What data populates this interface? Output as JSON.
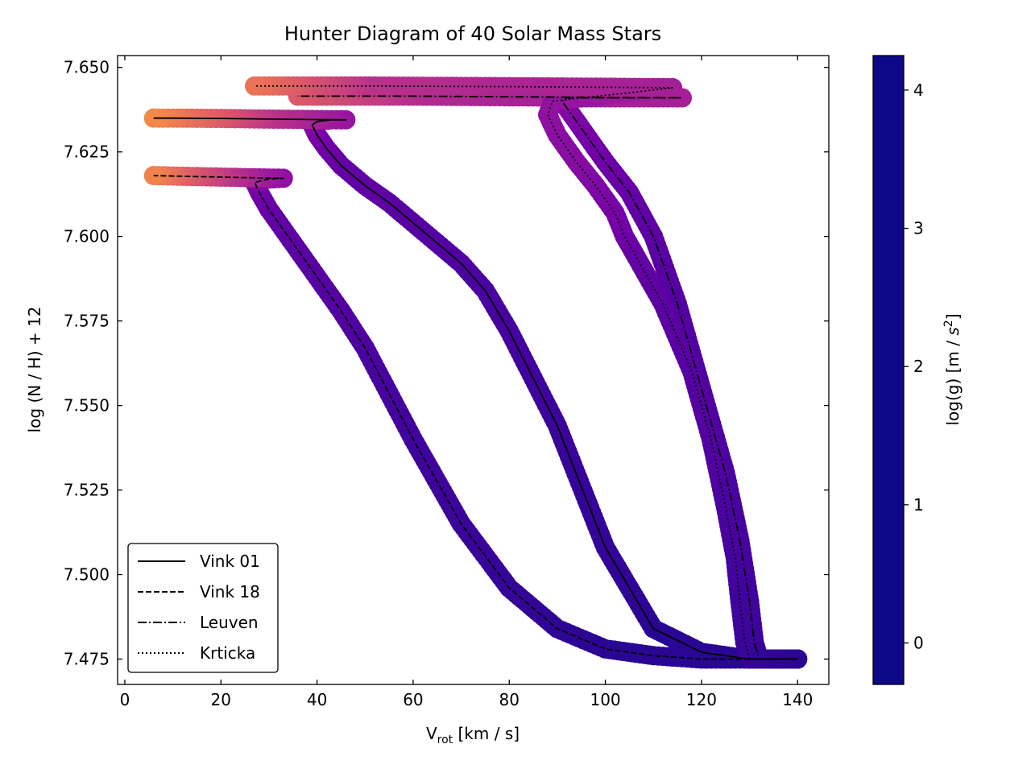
{
  "chart_data": {
    "type": "line",
    "title": "Hunter Diagram of 40 Solar Mass Stars",
    "xlabel": "V",
    "xlabel_sub": "rot",
    "xlabel_unit": " [km / s]",
    "ylabel": "log (N / H) + 12",
    "xlim": [
      -1.5,
      146.5
    ],
    "ylim": [
      7.4675,
      7.6535
    ],
    "x_ticks": [
      0,
      20,
      40,
      60,
      80,
      100,
      120,
      140
    ],
    "y_ticks": [
      7.475,
      7.5,
      7.525,
      7.55,
      7.575,
      7.6,
      7.625,
      7.65
    ],
    "y_tick_labels": [
      "7.475",
      "7.500",
      "7.525",
      "7.550",
      "7.575",
      "7.600",
      "7.625",
      "7.650"
    ],
    "legend_position": "lower-left",
    "colorbar": {
      "label": "log(g) [m / s²]",
      "label_pre": "log(g) [m / ",
      "label_s": "s",
      "label_exp": "2",
      "label_post": "]",
      "colormap": "plasma",
      "range": [
        -0.3,
        4.25
      ],
      "ticks": [
        0,
        1,
        2,
        3,
        4
      ],
      "tick_labels": [
        "0",
        "1",
        "2",
        "3",
        "4"
      ]
    },
    "series": [
      {
        "name": "Vink 01",
        "line_style": "solid",
        "x": [
          140,
          130,
          120,
          110,
          100,
          95,
          90,
          85,
          80,
          75,
          70,
          65,
          60,
          55,
          50,
          45,
          42,
          40,
          39,
          40,
          43,
          46,
          30,
          20,
          10,
          6
        ],
        "y": [
          7.475,
          7.475,
          7.477,
          7.484,
          7.508,
          7.526,
          7.544,
          7.558,
          7.572,
          7.584,
          7.592,
          7.598,
          7.604,
          7.61,
          7.615,
          7.621,
          7.626,
          7.63,
          7.633,
          7.634,
          7.6345,
          7.6345,
          7.6347,
          7.6349,
          7.635,
          7.635
        ],
        "logg": [
          4.0,
          4.0,
          4.0,
          4.0,
          3.9,
          3.9,
          3.85,
          3.8,
          3.75,
          3.7,
          3.65,
          3.6,
          3.55,
          3.5,
          3.45,
          3.4,
          3.3,
          3.2,
          3.1,
          3.0,
          2.9,
          2.8,
          2.3,
          1.7,
          1.2,
          1.0
        ]
      },
      {
        "name": "Vink 18",
        "line_style": "dashed",
        "x": [
          140,
          130,
          120,
          110,
          100,
          90,
          80,
          70,
          60,
          50,
          45,
          40,
          35,
          30,
          28,
          27,
          30,
          33,
          25,
          15,
          6
        ],
        "y": [
          7.475,
          7.475,
          7.475,
          7.476,
          7.478,
          7.484,
          7.496,
          7.515,
          7.54,
          7.567,
          7.578,
          7.588,
          7.598,
          7.608,
          7.613,
          7.616,
          7.617,
          7.6172,
          7.6174,
          7.6177,
          7.618
        ],
        "logg": [
          4.0,
          4.0,
          4.0,
          4.0,
          4.0,
          3.95,
          3.9,
          3.85,
          3.8,
          3.7,
          3.6,
          3.55,
          3.5,
          3.4,
          3.3,
          3.1,
          3.0,
          2.9,
          2.5,
          1.8,
          1.1
        ]
      },
      {
        "name": "Leuven",
        "line_style": "dashdot",
        "x": [
          140,
          132,
          131,
          130,
          128,
          125,
          120,
          115,
          110,
          105,
          100,
          96,
          93,
          91,
          92,
          96,
          105,
          116,
          80,
          60,
          36
        ],
        "y": [
          7.475,
          7.475,
          7.48,
          7.492,
          7.51,
          7.53,
          7.555,
          7.58,
          7.6,
          7.613,
          7.622,
          7.63,
          7.636,
          7.64,
          7.641,
          7.641,
          7.641,
          7.641,
          7.6413,
          7.6415,
          7.6415
        ],
        "logg": [
          4.0,
          3.9,
          3.85,
          3.8,
          3.75,
          3.7,
          3.65,
          3.6,
          3.5,
          3.4,
          3.3,
          3.2,
          3.1,
          3.0,
          2.9,
          2.8,
          2.7,
          2.6,
          2.55,
          2.4,
          1.7
        ]
      },
      {
        "name": "Krticka",
        "line_style": "dotted",
        "x": [
          140,
          130,
          129,
          128,
          127,
          125,
          122,
          118,
          112,
          106,
          104,
          102,
          98,
          94,
          90,
          88,
          89,
          95,
          105,
          114,
          80,
          50,
          27
        ],
        "y": [
          7.475,
          7.475,
          7.48,
          7.492,
          7.505,
          7.52,
          7.54,
          7.56,
          7.58,
          7.595,
          7.6,
          7.607,
          7.615,
          7.622,
          7.63,
          7.636,
          7.64,
          7.641,
          7.6425,
          7.644,
          7.6443,
          7.6445,
          7.6445
        ],
        "logg": [
          4.0,
          3.9,
          3.85,
          3.8,
          3.75,
          3.7,
          3.6,
          3.55,
          3.5,
          3.4,
          3.3,
          3.2,
          3.1,
          3.0,
          2.95,
          2.9,
          2.85,
          2.8,
          2.7,
          2.6,
          2.5,
          2.3,
          1.3
        ]
      }
    ],
    "plasma_colors": [
      "#0d0887",
      "#46039f",
      "#7201a8",
      "#9c179e",
      "#bd3786",
      "#d8576b",
      "#ed7953",
      "#fb9f3a",
      "#fdca26",
      "#f0f921"
    ]
  }
}
